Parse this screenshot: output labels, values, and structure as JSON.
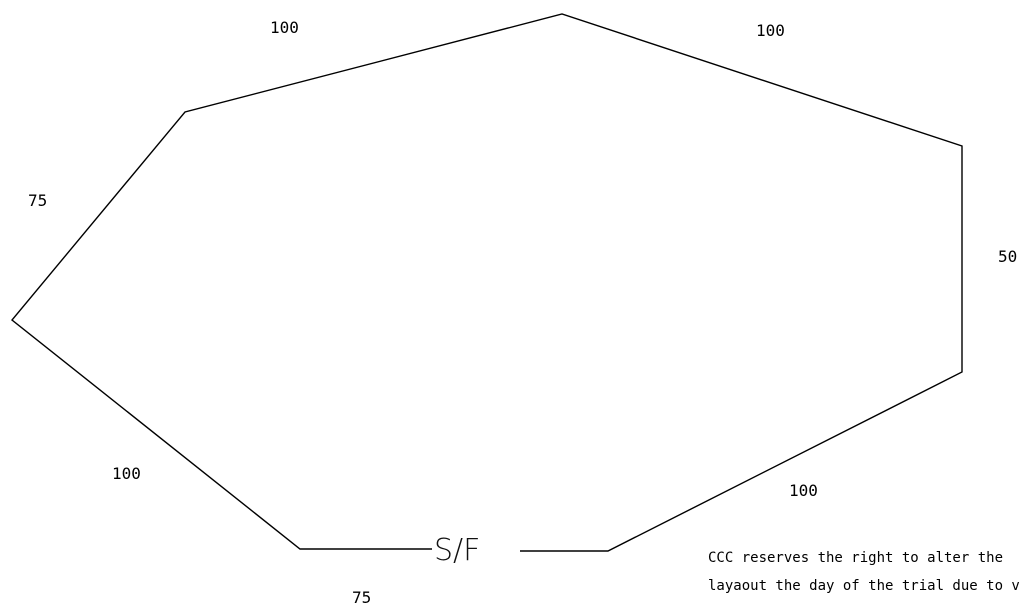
{
  "course": {
    "start_finish_label": "S/F",
    "line_color": "#000000",
    "segments": [
      {
        "id": "top-left",
        "distance": "100"
      },
      {
        "id": "top-right",
        "distance": "100"
      },
      {
        "id": "upper-left",
        "distance": "75"
      },
      {
        "id": "right",
        "distance": "50"
      },
      {
        "id": "lower-left",
        "distance": "100"
      },
      {
        "id": "lower-right",
        "distance": "100"
      },
      {
        "id": "bottom",
        "distance": "75"
      }
    ]
  },
  "disclaimer": {
    "line1": "CCC reserves the right to alter the",
    "line2": "layaout the day of the trial due to v"
  }
}
